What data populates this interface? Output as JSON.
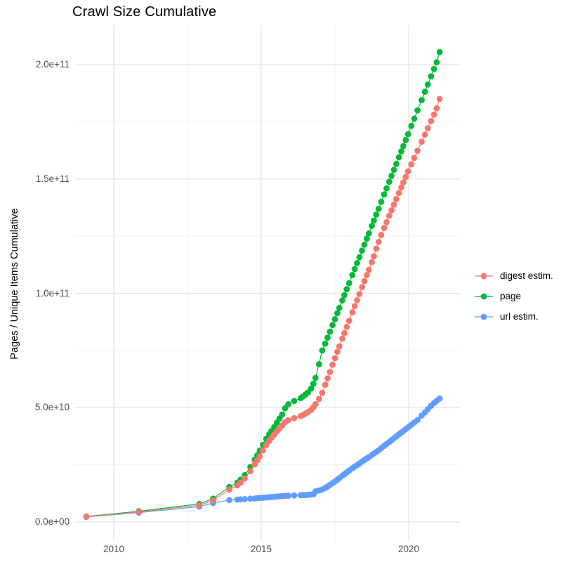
{
  "title": "Crawl Size Cumulative",
  "chart_data": {
    "type": "line",
    "title": "Crawl Size Cumulative",
    "xlabel": "",
    "ylabel": "Pages / Unique Items Cumulative",
    "value_unit": "1e9 (values below are billions of pages / items)",
    "grid": {
      "background": "#ffffff",
      "major_color": "#e4e4e4",
      "minor_color": "#f1f1f1"
    },
    "x_axis": {
      "ticks": [
        {
          "value": 2010,
          "label": "2010"
        },
        {
          "value": 2015,
          "label": "2015"
        },
        {
          "value": 2020,
          "label": "2020"
        }
      ],
      "minor": [
        2012.5,
        2017.5
      ],
      "range": [
        2008.75,
        2021.75
      ]
    },
    "y_axis": {
      "ticks": [
        {
          "value": 0,
          "label": "0.0e+00"
        },
        {
          "value": 50,
          "label": "5.0e+10"
        },
        {
          "value": 100,
          "label": "1.0e+11"
        },
        {
          "value": 150,
          "label": "1.5e+11"
        },
        {
          "value": 200,
          "label": "2.0e+11"
        }
      ],
      "minor": [
        25,
        75,
        125,
        175
      ],
      "range": [
        -10,
        217
      ]
    },
    "legend_position": "right",
    "x": [
      2009.07,
      2010.85,
      2012.9,
      2013.37,
      2013.92,
      2014.19,
      2014.3,
      2014.44,
      2014.63,
      2014.78,
      2014.87,
      2014.95,
      2015.06,
      2015.17,
      2015.27,
      2015.35,
      2015.44,
      2015.53,
      2015.62,
      2015.71,
      2015.81,
      2015.92,
      2016.12,
      2016.34,
      2016.42,
      2016.5,
      2016.58,
      2016.69,
      2016.77,
      2016.84,
      2016.96,
      2017.07,
      2017.17,
      2017.25,
      2017.33,
      2017.42,
      2017.5,
      2017.58,
      2017.65,
      2017.75,
      2017.82,
      2017.9,
      2017.98,
      2018.09,
      2018.17,
      2018.25,
      2018.33,
      2018.42,
      2018.5,
      2018.58,
      2018.65,
      2018.75,
      2018.82,
      2018.9,
      2018.98,
      2019.07,
      2019.17,
      2019.25,
      2019.34,
      2019.42,
      2019.5,
      2019.58,
      2019.67,
      2019.75,
      2019.82,
      2019.9,
      2019.98,
      2020.09,
      2020.19,
      2020.3,
      2020.44,
      2020.55,
      2020.65,
      2020.76,
      2020.86,
      2020.95,
      2021.05
    ],
    "series": [
      {
        "name": "digest estim.",
        "color": "#F8766D",
        "values": [
          2.3,
          4.4,
          7.3,
          9.4,
          14.2,
          16.0,
          17.2,
          19.0,
          22.2,
          25.2,
          27.0,
          28.8,
          31.3,
          33.6,
          35.4,
          36.8,
          38.2,
          39.6,
          40.9,
          42.2,
          43.6,
          44.5,
          45.4,
          46.3,
          46.8,
          47.4,
          48.0,
          49.0,
          50.2,
          51.5,
          53.8,
          56.5,
          60.0,
          62.8,
          65.6,
          68.8,
          71.6,
          74.4,
          76.8,
          80.2,
          82.6,
          85.3,
          88.0,
          91.7,
          94.4,
          97.0,
          99.7,
          102.7,
          105.3,
          108.0,
          110.3,
          113.6,
          116.2,
          119.5,
          122.5,
          125.5,
          128.6,
          131.1,
          133.9,
          136.3,
          138.8,
          141.2,
          143.9,
          146.3,
          148.5,
          150.9,
          153.3,
          156.4,
          159.2,
          162.3,
          166.3,
          169.4,
          172.2,
          175.3,
          178.2,
          180.9,
          185.0
        ]
      },
      {
        "name": "page",
        "color": "#00BA38",
        "values": [
          2.4,
          4.7,
          7.9,
          10.2,
          15.3,
          17.2,
          18.5,
          20.5,
          24.0,
          27.3,
          29.2,
          31.2,
          33.8,
          36.3,
          38.3,
          39.8,
          41.5,
          43.4,
          45.2,
          47.0,
          49.7,
          51.5,
          52.9,
          54.2,
          54.9,
          55.7,
          56.6,
          58.3,
          60.5,
          63.0,
          69.0,
          75.0,
          78.0,
          80.6,
          83.2,
          86.1,
          88.7,
          91.3,
          93.6,
          96.9,
          99.2,
          101.8,
          104.4,
          108.0,
          110.6,
          113.2,
          115.8,
          118.7,
          121.3,
          123.9,
          126.2,
          129.5,
          131.8,
          134.4,
          137.0,
          140.0,
          143.3,
          145.9,
          148.8,
          151.4,
          154.0,
          156.6,
          159.5,
          162.1,
          164.4,
          167.0,
          169.6,
          173.2,
          176.4,
          180.0,
          184.5,
          188.1,
          191.3,
          194.9,
          198.1,
          201.0,
          205.5
        ]
      },
      {
        "name": "url estim.",
        "color": "#619CFF",
        "values": [
          2.2,
          4.1,
          6.7,
          8.3,
          9.6,
          9.8,
          9.9,
          10.0,
          10.2,
          10.3,
          10.4,
          10.5,
          10.6,
          10.7,
          10.8,
          10.9,
          11.0,
          11.1,
          11.2,
          11.3,
          11.4,
          11.5,
          11.6,
          11.7,
          11.8,
          11.8,
          11.9,
          12.0,
          12.1,
          13.4,
          13.8,
          14.2,
          14.9,
          15.5,
          16.2,
          17.0,
          17.7,
          18.5,
          19.2,
          20.2,
          20.9,
          21.7,
          22.5,
          23.5,
          24.2,
          24.9,
          25.6,
          26.4,
          27.1,
          27.8,
          28.4,
          29.3,
          29.9,
          30.6,
          31.3,
          32.3,
          33.3,
          34.1,
          35.0,
          35.8,
          36.6,
          37.4,
          38.3,
          39.1,
          39.8,
          40.6,
          41.4,
          42.5,
          43.5,
          44.6,
          46.5,
          47.9,
          49.3,
          50.8,
          52.0,
          53.0,
          54.0
        ]
      }
    ],
    "draw_order": [
      "url estim.",
      "page",
      "digest estim."
    ]
  }
}
